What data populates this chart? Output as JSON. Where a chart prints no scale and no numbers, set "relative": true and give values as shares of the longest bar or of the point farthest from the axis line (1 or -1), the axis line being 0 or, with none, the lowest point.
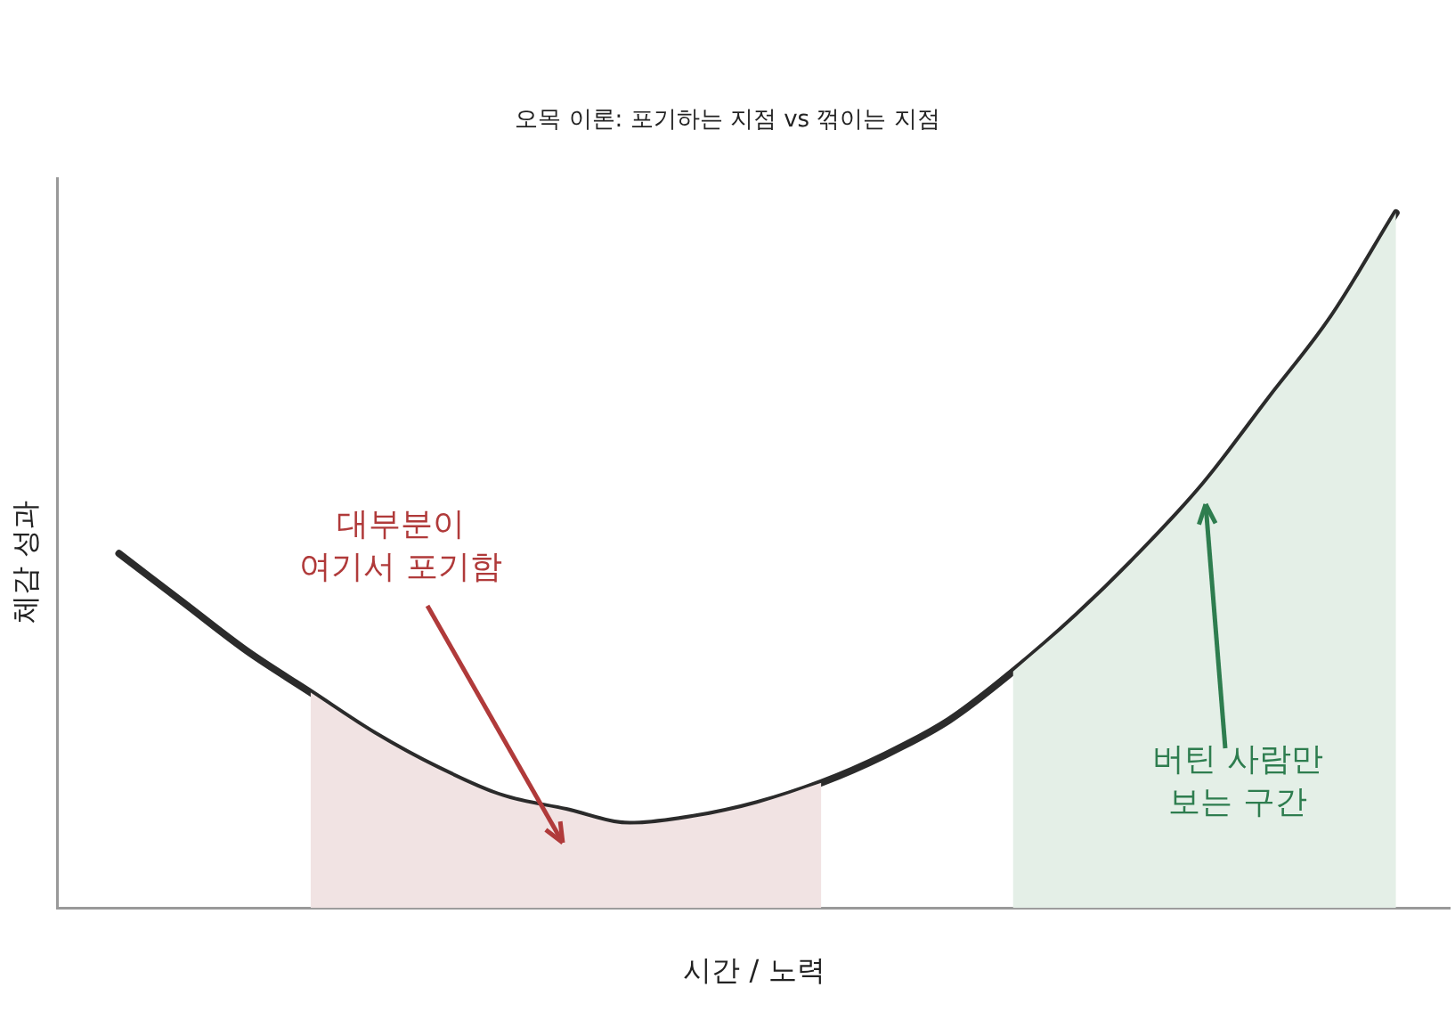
{
  "chart_data": {
    "type": "line",
    "title": "오목 이론: 포기하는 지점 vs 꺾이는 지점",
    "xlabel": "시간 / 노력",
    "ylabel": "체감 성과",
    "relative": true,
    "grid": false,
    "legend": false,
    "marker": "none",
    "line_style": "solid",
    "categories": [
      null,
      null,
      null,
      null,
      null,
      null,
      null,
      null,
      null,
      null,
      null,
      null,
      null,
      null,
      null,
      null,
      null,
      null,
      null,
      null,
      null
    ],
    "series": [
      {
        "type": "area",
        "color": "#f1e3e3",
        "values": [
          null,
          null,
          null,
          0.31,
          0.25,
          0.2,
          0.16,
          0.14,
          0.12,
          0.13,
          0.15,
          0.18,
          null,
          null,
          null,
          null,
          null,
          null,
          null,
          null,
          null
        ]
      },
      {
        "type": "area",
        "color": "#e4efe7",
        "values": [
          null,
          null,
          null,
          null,
          null,
          null,
          null,
          null,
          null,
          null,
          null,
          null,
          null,
          null,
          0.34,
          0.42,
          0.51,
          0.61,
          0.73,
          0.85,
          1
        ]
      },
      {
        "color": "#2b2b2b",
        "values": [
          0.51,
          0.44,
          0.37,
          0.31,
          0.25,
          0.2,
          0.16,
          0.14,
          0.12,
          0.13,
          0.15,
          0.18,
          0.22,
          0.27,
          0.34,
          0.42,
          0.51,
          0.61,
          0.73,
          0.85,
          1
        ]
      }
    ],
    "annotations": [
      "대부분이\n여기서 포기함",
      "버틴 사람만\n보는 구간"
    ]
  }
}
